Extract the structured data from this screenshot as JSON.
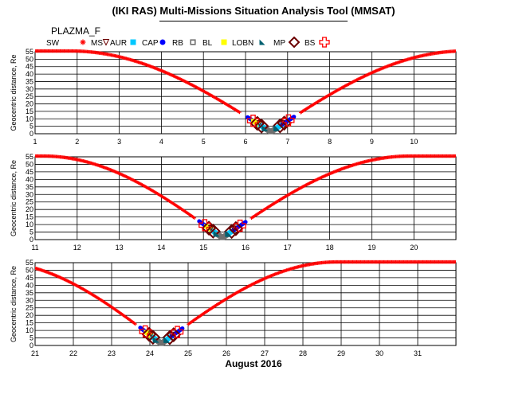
{
  "title": "(IKI RAS) Multi-Missions Situation Analysis Tool (MMSAT)",
  "satellite": "PLAZMA_F",
  "legend": [
    {
      "label": "SW",
      "marker": "star",
      "color": "#ff0000"
    },
    {
      "label": "MS",
      "marker": "triangle-down",
      "color": "#6b0000"
    },
    {
      "label": "AUR",
      "marker": "square",
      "color": "#00c8ff"
    },
    {
      "label": "CAP",
      "marker": "circle",
      "color": "#0000ff"
    },
    {
      "label": "RB",
      "marker": "small-square",
      "color": "#707070"
    },
    {
      "label": "BL",
      "marker": "square",
      "color": "#ffff00"
    },
    {
      "label": "LOBN",
      "marker": "triangle-corner",
      "color": "#006070"
    },
    {
      "label": "MP",
      "marker": "diamond",
      "color": "#6b0000"
    },
    {
      "label": "BS",
      "marker": "cross",
      "color": "#ff0000"
    }
  ],
  "xlabel": "August 2016",
  "chart_data": [
    {
      "type": "scatter",
      "ylabel": "Geocentric distance, Re",
      "xlim": [
        1,
        11
      ],
      "ylim": [
        0,
        55
      ],
      "x_ticks": [
        "1",
        "2",
        "3",
        "4",
        "5",
        "6",
        "7",
        "8",
        "9",
        "10"
      ],
      "y_ticks": [
        "0",
        "5",
        "10",
        "15",
        "20",
        "25",
        "30",
        "35",
        "40",
        "45",
        "50",
        "55"
      ],
      "grid": true,
      "perigee_day": 6.6,
      "apogee_day": 1.85,
      "apogee_re": 55.5,
      "next_apogee_day": 11.2
    },
    {
      "type": "scatter",
      "ylabel": "Geocentric distance, Re",
      "xlim": [
        11,
        21
      ],
      "ylim": [
        0,
        55
      ],
      "x_ticks": [
        "11",
        "12",
        "13",
        "14",
        "15",
        "16",
        "17",
        "18",
        "19",
        "20"
      ],
      "y_ticks": [
        "0",
        "5",
        "10",
        "15",
        "20",
        "25",
        "30",
        "35",
        "40",
        "45",
        "50",
        "55"
      ],
      "grid": true,
      "perigee_day": 15.45,
      "apogee_day": 11.2,
      "apogee_re": 55.5,
      "next_apogee_day": 19.9
    },
    {
      "type": "scatter",
      "ylabel": "Geocentric distance, Re",
      "xlim": [
        21,
        32
      ],
      "ylim": [
        0,
        55
      ],
      "x_ticks": [
        "21",
        "22",
        "23",
        "24",
        "25",
        "26",
        "27",
        "28",
        "29",
        "30",
        "31"
      ],
      "y_ticks": [
        "0",
        "5",
        "10",
        "15",
        "20",
        "25",
        "30",
        "35",
        "40",
        "45",
        "50",
        "55"
      ],
      "grid": true,
      "perigee_day": 24.3,
      "apogee_day": 19.9,
      "apogee_re": 55.5,
      "next_apogee_day": 28.9
    }
  ]
}
